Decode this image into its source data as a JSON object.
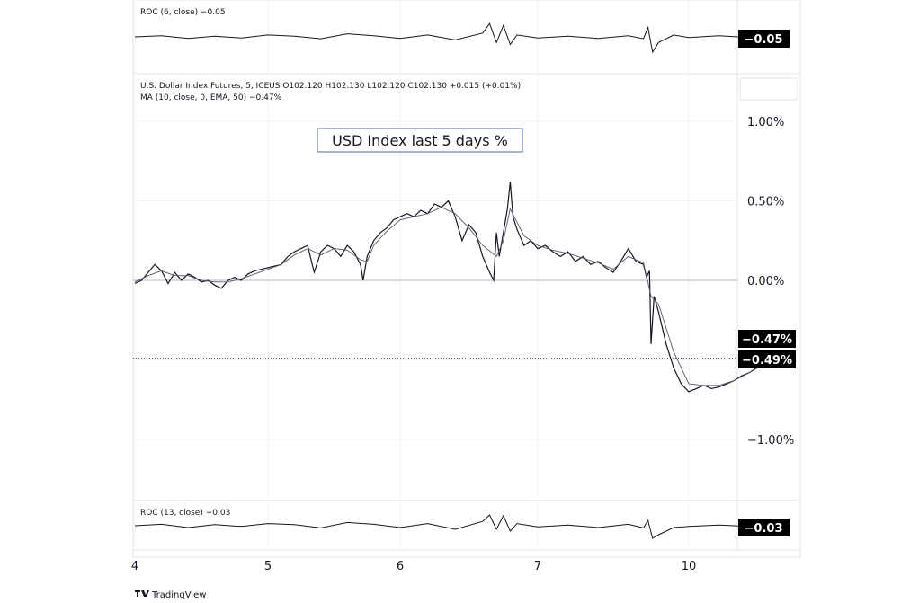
{
  "chart_data": {
    "type": "line",
    "title": "USD Index last 5 days %",
    "main_legend": {
      "line1": "U.S. Dollar Index Futures, 5, ICEUS  O102.120  H102.130  L102.120  C102.130  +0.015 (+0.01%)",
      "line2": "MA (10, close, 0, EMA, 50)  −0.47%"
    },
    "x_ticks": [
      "4",
      "5",
      "6",
      "7",
      "10"
    ],
    "y_ticks": [
      "1.00%",
      "0.50%",
      "0.00%",
      "−1.00%"
    ],
    "ylim": [
      -1.3,
      1.25
    ],
    "last_value_badges": {
      "ma": "−0.47%",
      "price": "−0.49%"
    },
    "series": [
      {
        "name": "U.S. Dollar Index Futures",
        "points": [
          [
            0.0,
            -0.02
          ],
          [
            0.05,
            0.0
          ],
          [
            0.1,
            0.05
          ],
          [
            0.15,
            0.1
          ],
          [
            0.2,
            0.06
          ],
          [
            0.25,
            -0.02
          ],
          [
            0.3,
            0.05
          ],
          [
            0.35,
            0.0
          ],
          [
            0.4,
            0.04
          ],
          [
            0.45,
            0.02
          ],
          [
            0.5,
            -0.01
          ],
          [
            0.55,
            0.0
          ],
          [
            0.6,
            -0.03
          ],
          [
            0.65,
            -0.05
          ],
          [
            0.7,
            0.0
          ],
          [
            0.75,
            0.02
          ],
          [
            0.8,
            0.0
          ],
          [
            0.85,
            0.04
          ],
          [
            0.9,
            0.06
          ],
          [
            1.0,
            0.08
          ],
          [
            1.1,
            0.1
          ],
          [
            1.15,
            0.15
          ],
          [
            1.2,
            0.18
          ],
          [
            1.25,
            0.2
          ],
          [
            1.3,
            0.22
          ],
          [
            1.35,
            0.05
          ],
          [
            1.4,
            0.18
          ],
          [
            1.45,
            0.22
          ],
          [
            1.5,
            0.2
          ],
          [
            1.55,
            0.15
          ],
          [
            1.6,
            0.22
          ],
          [
            1.65,
            0.18
          ],
          [
            1.7,
            0.1
          ],
          [
            1.72,
            0.0
          ],
          [
            1.75,
            0.15
          ],
          [
            1.8,
            0.25
          ],
          [
            1.85,
            0.3
          ],
          [
            1.9,
            0.33
          ],
          [
            1.95,
            0.38
          ],
          [
            2.0,
            0.4
          ],
          [
            2.05,
            0.42
          ],
          [
            2.1,
            0.4
          ],
          [
            2.15,
            0.44
          ],
          [
            2.2,
            0.42
          ],
          [
            2.25,
            0.48
          ],
          [
            2.3,
            0.46
          ],
          [
            2.35,
            0.5
          ],
          [
            2.4,
            0.4
          ],
          [
            2.45,
            0.25
          ],
          [
            2.5,
            0.35
          ],
          [
            2.55,
            0.3
          ],
          [
            2.6,
            0.15
          ],
          [
            2.65,
            0.05
          ],
          [
            2.68,
            0.0
          ],
          [
            2.7,
            0.3
          ],
          [
            2.72,
            0.15
          ],
          [
            2.75,
            0.3
          ],
          [
            2.78,
            0.45
          ],
          [
            2.8,
            0.62
          ],
          [
            2.82,
            0.4
          ],
          [
            2.85,
            0.32
          ],
          [
            2.9,
            0.22
          ],
          [
            2.95,
            0.25
          ],
          [
            3.0,
            0.2
          ],
          [
            3.05,
            0.22
          ],
          [
            3.1,
            0.18
          ],
          [
            3.15,
            0.15
          ],
          [
            3.2,
            0.18
          ],
          [
            3.25,
            0.12
          ],
          [
            3.3,
            0.15
          ],
          [
            3.35,
            0.1
          ],
          [
            3.4,
            0.12
          ],
          [
            3.45,
            0.08
          ],
          [
            3.5,
            0.05
          ],
          [
            3.55,
            0.12
          ],
          [
            3.6,
            0.2
          ],
          [
            3.65,
            0.12
          ],
          [
            3.7,
            0.1
          ],
          [
            3.72,
            0.02
          ],
          [
            3.74,
            0.06
          ],
          [
            3.75,
            -0.4
          ],
          [
            3.77,
            -0.1
          ],
          [
            3.8,
            -0.2
          ],
          [
            3.85,
            -0.4
          ],
          [
            3.9,
            -0.55
          ],
          [
            3.95,
            -0.65
          ],
          [
            4.0,
            -0.7
          ],
          [
            4.05,
            -0.68
          ],
          [
            4.1,
            -0.66
          ],
          [
            4.15,
            -0.68
          ],
          [
            4.2,
            -0.67
          ],
          [
            4.25,
            -0.65
          ],
          [
            4.3,
            -0.63
          ],
          [
            4.35,
            -0.6
          ],
          [
            4.4,
            -0.58
          ],
          [
            4.45,
            -0.55
          ],
          [
            4.5,
            -0.5
          ],
          [
            4.52,
            -0.47
          ],
          [
            4.54,
            -0.5
          ],
          [
            4.55,
            -0.49
          ]
        ]
      },
      {
        "name": "MA (10, close, 0, EMA, 50)",
        "points": [
          [
            0.0,
            -0.01
          ],
          [
            0.1,
            0.03
          ],
          [
            0.2,
            0.06
          ],
          [
            0.3,
            0.03
          ],
          [
            0.4,
            0.03
          ],
          [
            0.5,
            0.0
          ],
          [
            0.6,
            -0.01
          ],
          [
            0.7,
            -0.01
          ],
          [
            0.8,
            0.01
          ],
          [
            0.9,
            0.04
          ],
          [
            1.0,
            0.07
          ],
          [
            1.1,
            0.1
          ],
          [
            1.2,
            0.16
          ],
          [
            1.3,
            0.2
          ],
          [
            1.4,
            0.16
          ],
          [
            1.5,
            0.2
          ],
          [
            1.6,
            0.19
          ],
          [
            1.7,
            0.13
          ],
          [
            1.75,
            0.12
          ],
          [
            1.8,
            0.22
          ],
          [
            1.9,
            0.31
          ],
          [
            2.0,
            0.38
          ],
          [
            2.1,
            0.4
          ],
          [
            2.2,
            0.42
          ],
          [
            2.3,
            0.46
          ],
          [
            2.4,
            0.42
          ],
          [
            2.5,
            0.33
          ],
          [
            2.6,
            0.22
          ],
          [
            2.7,
            0.15
          ],
          [
            2.75,
            0.25
          ],
          [
            2.8,
            0.45
          ],
          [
            2.9,
            0.28
          ],
          [
            3.0,
            0.22
          ],
          [
            3.1,
            0.19
          ],
          [
            3.2,
            0.17
          ],
          [
            3.3,
            0.14
          ],
          [
            3.4,
            0.11
          ],
          [
            3.5,
            0.07
          ],
          [
            3.6,
            0.15
          ],
          [
            3.7,
            0.11
          ],
          [
            3.75,
            -0.1
          ],
          [
            3.8,
            -0.15
          ],
          [
            3.9,
            -0.45
          ],
          [
            4.0,
            -0.65
          ],
          [
            4.1,
            -0.66
          ],
          [
            4.2,
            -0.66
          ],
          [
            4.3,
            -0.63
          ],
          [
            4.4,
            -0.58
          ],
          [
            4.5,
            -0.51
          ],
          [
            4.55,
            -0.47
          ]
        ]
      }
    ],
    "roc_top": {
      "label": "ROC (6, close)  −0.05",
      "value": "−0.05",
      "ylim": [
        -0.45,
        0.45
      ],
      "points": [
        [
          0.0,
          0.0
        ],
        [
          0.2,
          0.03
        ],
        [
          0.4,
          -0.04
        ],
        [
          0.6,
          0.02
        ],
        [
          0.8,
          -0.03
        ],
        [
          1.0,
          0.05
        ],
        [
          1.2,
          0.02
        ],
        [
          1.4,
          -0.05
        ],
        [
          1.6,
          0.08
        ],
        [
          1.8,
          0.03
        ],
        [
          2.0,
          -0.04
        ],
        [
          2.2,
          0.05
        ],
        [
          2.4,
          -0.08
        ],
        [
          2.6,
          0.1
        ],
        [
          2.65,
          0.35
        ],
        [
          2.7,
          -0.15
        ],
        [
          2.75,
          0.3
        ],
        [
          2.8,
          -0.2
        ],
        [
          2.85,
          0.05
        ],
        [
          3.0,
          -0.03
        ],
        [
          3.2,
          0.02
        ],
        [
          3.4,
          -0.04
        ],
        [
          3.6,
          0.03
        ],
        [
          3.7,
          -0.05
        ],
        [
          3.73,
          0.25
        ],
        [
          3.76,
          -0.4
        ],
        [
          3.8,
          -0.15
        ],
        [
          3.9,
          0.05
        ],
        [
          4.0,
          -0.02
        ],
        [
          4.2,
          0.03
        ],
        [
          4.4,
          -0.02
        ],
        [
          4.55,
          -0.05
        ]
      ]
    },
    "roc_bottom": {
      "label": "ROC (13, close)  −0.03",
      "value": "−0.03",
      "ylim": [
        -0.45,
        0.45
      ],
      "points": [
        [
          0.0,
          0.0
        ],
        [
          0.2,
          0.04
        ],
        [
          0.4,
          -0.05
        ],
        [
          0.6,
          0.03
        ],
        [
          0.8,
          -0.02
        ],
        [
          1.0,
          0.06
        ],
        [
          1.2,
          0.03
        ],
        [
          1.4,
          -0.06
        ],
        [
          1.6,
          0.09
        ],
        [
          1.8,
          0.04
        ],
        [
          2.0,
          -0.05
        ],
        [
          2.2,
          0.06
        ],
        [
          2.4,
          -0.1
        ],
        [
          2.6,
          0.12
        ],
        [
          2.65,
          0.3
        ],
        [
          2.7,
          -0.1
        ],
        [
          2.75,
          0.28
        ],
        [
          2.8,
          -0.15
        ],
        [
          2.85,
          0.06
        ],
        [
          3.0,
          -0.03
        ],
        [
          3.2,
          0.02
        ],
        [
          3.4,
          -0.05
        ],
        [
          3.6,
          0.04
        ],
        [
          3.7,
          -0.06
        ],
        [
          3.73,
          0.15
        ],
        [
          3.76,
          -0.35
        ],
        [
          3.8,
          -0.25
        ],
        [
          3.9,
          -0.05
        ],
        [
          4.0,
          -0.02
        ],
        [
          4.2,
          0.02
        ],
        [
          4.4,
          -0.02
        ],
        [
          4.55,
          -0.03
        ]
      ]
    }
  },
  "footer": {
    "brand": "TradingView"
  }
}
